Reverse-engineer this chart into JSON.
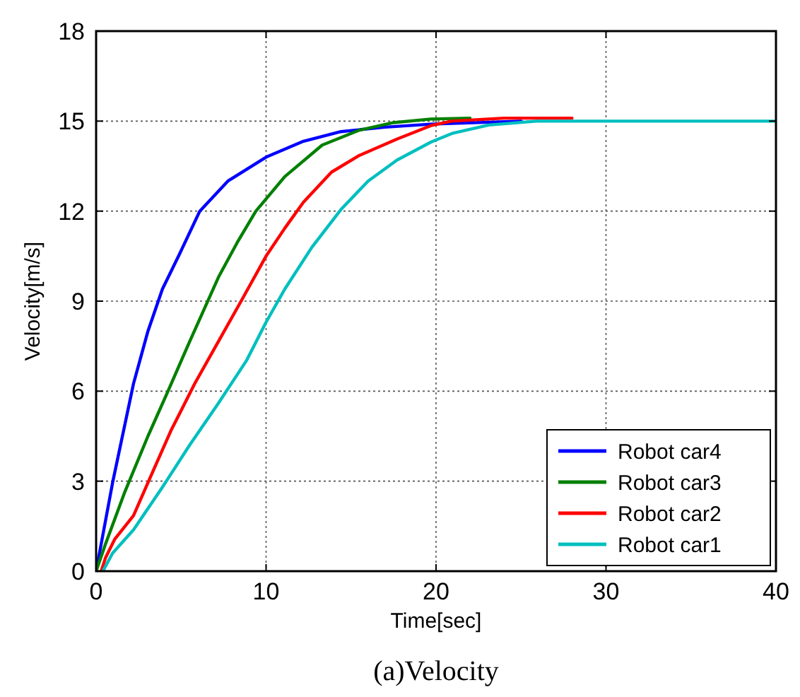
{
  "chart_data": {
    "type": "line",
    "xlabel": "Time[sec]",
    "ylabel": "Velocity[m/s]",
    "annotations": [
      "(a)Velocity"
    ],
    "xlim": [
      0,
      40
    ],
    "ylim": [
      0,
      18
    ],
    "xticks": [
      0,
      10,
      20,
      30,
      40
    ],
    "yticks": [
      0,
      3,
      6,
      9,
      12,
      15,
      18
    ],
    "grid": true,
    "legend": "bottom right",
    "marker": "none",
    "line_style": "solid",
    "series": [
      {
        "name": "Robot car4",
        "color": "#0000ff",
        "x": [
          0,
          0.97,
          2.2,
          3.05,
          3.9,
          4.85,
          6.1,
          7.75,
          10,
          12.2,
          14.4,
          17,
          19.7,
          25
        ],
        "values": [
          0,
          2.95,
          6.25,
          8,
          9.4,
          10.5,
          12,
          13,
          13.8,
          14.33,
          14.65,
          14.8,
          14.9,
          15
        ]
      },
      {
        "name": "Robot car3",
        "color": "#008000",
        "x": [
          0,
          0.55,
          1.66,
          3.05,
          4.15,
          5.5,
          7.2,
          8.3,
          9.4,
          11.1,
          13.3,
          15.5,
          17.5,
          19.7,
          22
        ],
        "values": [
          0,
          0.9,
          2.6,
          4.5,
          5.9,
          7.65,
          9.8,
          10.95,
          12,
          13.15,
          14.2,
          14.7,
          14.95,
          15.07,
          15.1
        ]
      },
      {
        "name": "Robot car2",
        "color": "#ff0000",
        "x": [
          0.3,
          0.55,
          1.1,
          2.2,
          3.3,
          4.4,
          5.8,
          7.2,
          8.6,
          10,
          11.1,
          12.2,
          13.85,
          15.5,
          17.7,
          19.7,
          20.9,
          24,
          28
        ],
        "values": [
          0,
          0.44,
          1.07,
          1.85,
          3.27,
          4.68,
          6.25,
          7.66,
          9.07,
          10.5,
          11.43,
          12.3,
          13.3,
          13.86,
          14.4,
          14.85,
          15,
          15.1,
          15.1
        ]
      },
      {
        "name": "Robot car1",
        "color": "#00bfbf",
        "x": [
          0.4,
          0.97,
          2.2,
          3.9,
          5.5,
          7.2,
          8.86,
          10,
          11.1,
          12.7,
          14.4,
          16,
          17.7,
          19.7,
          21,
          23.1,
          25.9,
          40
        ],
        "values": [
          0,
          0.6,
          1.38,
          2.8,
          4.2,
          5.6,
          7.03,
          8.3,
          9.4,
          10.8,
          12.05,
          13,
          13.7,
          14.3,
          14.6,
          14.87,
          15,
          15
        ]
      }
    ]
  }
}
